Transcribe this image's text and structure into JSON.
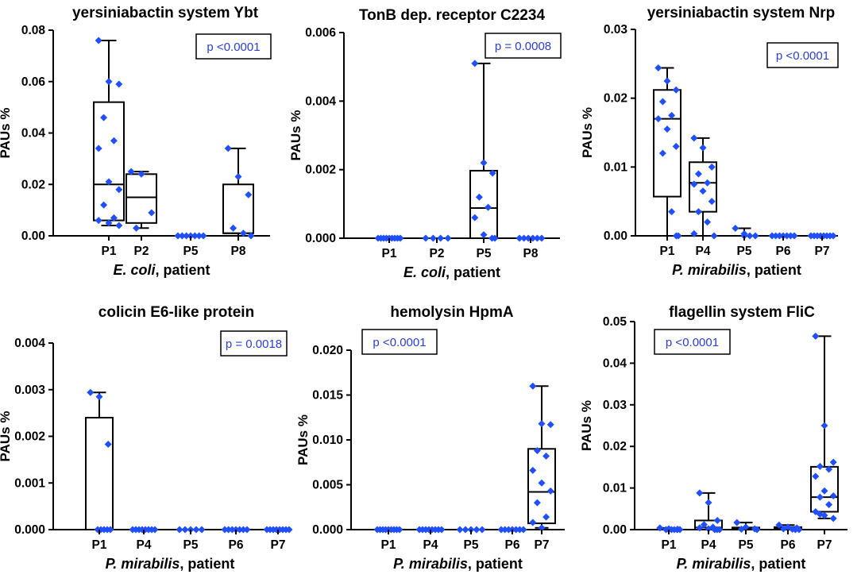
{
  "colors": {
    "point": "#1f4fff",
    "axis": "#000000",
    "pvalue_text": "#2a3fd4"
  },
  "chart_data": [
    {
      "type": "box",
      "title": "yersiniabactin system Ybt",
      "ylabel": "PAUs %",
      "xlabel_species": "E. coli",
      "xlabel_suffix": ", patient",
      "ylim": [
        0,
        0.08
      ],
      "yticks": [
        0.0,
        0.02,
        0.04,
        0.06,
        0.08
      ],
      "ytick_labels": [
        "0.00",
        "0.02",
        "0.04",
        "0.06",
        "0.08"
      ],
      "pvalue": "p <0.0001",
      "pvalue_position": "top-right",
      "categories": [
        "P1",
        "P2",
        "P5",
        "P8"
      ],
      "boxes": [
        {
          "min": 0.004,
          "q1": 0.006,
          "median": 0.02,
          "q3": 0.052,
          "max": 0.076
        },
        {
          "min": 0.003,
          "q1": 0.005,
          "median": 0.015,
          "q3": 0.024,
          "max": 0.025
        },
        {
          "min": 0.0,
          "q1": 0.0,
          "median": 0.0,
          "q3": 0.0,
          "max": 0.0
        },
        {
          "min": 0.0,
          "q1": 0.001,
          "median": 0.001,
          "q3": 0.02,
          "max": 0.034
        }
      ],
      "points": [
        [
          0.076,
          0.06,
          0.059,
          0.046,
          0.037,
          0.034,
          0.021,
          0.018,
          0.012,
          0.007,
          0.006,
          0.005,
          0.004
        ],
        [
          0.025,
          0.024,
          0.009,
          0.003
        ],
        [
          0.0,
          0.0,
          0.0,
          0.0,
          0.0,
          0.0,
          0.0
        ],
        [
          0.034,
          0.023,
          0.016,
          0.003,
          0.001,
          0.0
        ]
      ]
    },
    {
      "type": "box",
      "title": "TonB dep. receptor C2234",
      "ylabel": "PAUs %",
      "xlabel_species": "E. coli",
      "xlabel_suffix": ", patient",
      "ylim": [
        0,
        0.006
      ],
      "yticks": [
        0.0,
        0.002,
        0.004,
        0.006
      ],
      "ytick_labels": [
        "0.000",
        "0.002",
        "0.004",
        "0.006"
      ],
      "pvalue": "p = 0.0008",
      "pvalue_position": "top-right",
      "categories": [
        "P1",
        "P2",
        "P5",
        "P8"
      ],
      "boxes": [
        {
          "min": 0.0,
          "q1": 0.0,
          "median": 0.0,
          "q3": 0.0,
          "max": 0.0
        },
        {
          "min": 0.0,
          "q1": 0.0,
          "median": 0.0,
          "q3": 0.0,
          "max": 0.0
        },
        {
          "min": 0.0,
          "q1": 0.0,
          "median": 0.00088,
          "q3": 0.00197,
          "max": 0.0051
        },
        {
          "min": 0.0,
          "q1": 0.0,
          "median": 0.0,
          "q3": 0.0,
          "max": 0.0
        }
      ],
      "points": [
        [
          0.0,
          0.0,
          0.0,
          0.0,
          0.0,
          0.0,
          0.0,
          0.0,
          0.0
        ],
        [
          0.0,
          0.0,
          0.0,
          0.0
        ],
        [
          0.0051,
          0.0022,
          0.0019,
          0.0012,
          0.0009,
          0.0006,
          0.0001,
          0.0,
          0.0
        ],
        [
          0.0,
          0.0,
          0.0,
          0.0,
          0.0,
          0.0
        ]
      ]
    },
    {
      "type": "box",
      "title": "yersiniabactin system Nrp",
      "ylabel": "PAUs %",
      "xlabel_species": "P. mirabilis",
      "xlabel_suffix": ", patient",
      "ylim": [
        0,
        0.03
      ],
      "yticks": [
        0.0,
        0.01,
        0.02,
        0.03
      ],
      "ytick_labels": [
        "0.00",
        "0.01",
        "0.02",
        "0.03"
      ],
      "pvalue": "p <0.0001",
      "pvalue_position": "top-right",
      "categories": [
        "P1",
        "P4",
        "P5",
        "P6",
        "P7"
      ],
      "boxes": [
        {
          "min": 0.0,
          "q1": 0.0057,
          "median": 0.017,
          "q3": 0.0212,
          "max": 0.0244
        },
        {
          "min": 0.0,
          "q1": 0.0035,
          "median": 0.0077,
          "q3": 0.0107,
          "max": 0.0142
        },
        {
          "min": 0.0,
          "q1": 0.0,
          "median": 0.0,
          "q3": 0.0,
          "max": 0.0011
        },
        {
          "min": 0.0,
          "q1": 0.0,
          "median": 0.0,
          "q3": 0.0,
          "max": 0.0
        },
        {
          "min": 0.0,
          "q1": 0.0,
          "median": 0.0,
          "q3": 0.0,
          "max": 0.0
        }
      ],
      "points": [
        [
          0.0244,
          0.0225,
          0.0212,
          0.0195,
          0.0175,
          0.017,
          0.0155,
          0.013,
          0.012,
          0.0035,
          0.0,
          0.0
        ],
        [
          0.0142,
          0.0128,
          0.01,
          0.009,
          0.0077,
          0.0075,
          0.0065,
          0.005,
          0.0035,
          0.002,
          0.0003,
          0.0
        ],
        [
          0.0011,
          0.0003,
          0.0,
          0.0,
          0.0
        ],
        [
          0.0,
          0.0,
          0.0,
          0.0,
          0.0,
          0.0,
          0.0
        ],
        [
          0.0,
          0.0,
          0.0,
          0.0,
          0.0,
          0.0,
          0.0,
          0.0
        ]
      ]
    },
    {
      "type": "box",
      "title": "colicin E6-like protein",
      "ylabel": "PAUs %",
      "xlabel_species": "P. mirabilis",
      "xlabel_suffix": ", patient",
      "ylim": [
        0,
        0.004
      ],
      "yticks": [
        0.0,
        0.001,
        0.002,
        0.003,
        0.004
      ],
      "ytick_labels": [
        "0.000",
        "0.001",
        "0.002",
        "0.003",
        "0.004"
      ],
      "pvalue": "p = 0.0018",
      "pvalue_position": "top-right",
      "categories": [
        "P1",
        "P4",
        "P5",
        "P6",
        "P7"
      ],
      "boxes": [
        {
          "min": 0.0,
          "q1": 0.0,
          "median": 0.0,
          "q3": 0.0024,
          "max": 0.00294
        },
        {
          "min": 0.0,
          "q1": 0.0,
          "median": 0.0,
          "q3": 0.0,
          "max": 0.0
        },
        {
          "min": 0.0,
          "q1": 0.0,
          "median": 0.0,
          "q3": 0.0,
          "max": 0.0
        },
        {
          "min": 0.0,
          "q1": 0.0,
          "median": 0.0,
          "q3": 0.0,
          "max": 0.0
        },
        {
          "min": 0.0,
          "q1": 0.0,
          "median": 0.0,
          "q3": 0.0,
          "max": 0.0
        }
      ],
      "points": [
        [
          0.00294,
          0.00285,
          0.00183,
          0.0,
          0.0,
          0.0,
          0.0,
          0.0
        ],
        [
          0.0,
          0.0,
          0.0,
          0.0,
          0.0,
          0.0,
          0.0,
          0.0
        ],
        [
          0.0,
          0.0,
          0.0,
          0.0,
          0.0
        ],
        [
          0.0,
          0.0,
          0.0,
          0.0,
          0.0,
          0.0,
          0.0
        ],
        [
          0.0,
          0.0,
          0.0,
          0.0,
          0.0,
          0.0,
          0.0,
          0.0
        ]
      ]
    },
    {
      "type": "box",
      "title": "hemolysin HpmA",
      "ylabel": "PAUs %",
      "xlabel_species": "P. mirabilis",
      "xlabel_suffix": ", patient",
      "ylim": [
        0,
        0.02
      ],
      "yticks": [
        0.0,
        0.005,
        0.01,
        0.015,
        0.02
      ],
      "ytick_labels": [
        "0.000",
        "0.005",
        "0.010",
        "0.015",
        "0.020"
      ],
      "pvalue": "p <0.0001",
      "pvalue_position": "top-left",
      "categories": [
        "P1",
        "P4",
        "P5",
        "P6",
        "P7"
      ],
      "boxes": [
        {
          "min": 0.0,
          "q1": 0.0,
          "median": 0.0,
          "q3": 0.0,
          "max": 0.0
        },
        {
          "min": 0.0,
          "q1": 0.0,
          "median": 0.0,
          "q3": 0.0,
          "max": 0.0
        },
        {
          "min": 0.0,
          "q1": 0.0,
          "median": 0.0,
          "q3": 0.0,
          "max": 0.0
        },
        {
          "min": 0.0,
          "q1": 0.0,
          "median": 0.0,
          "q3": 0.0,
          "max": 0.0
        },
        {
          "min": 0.0002,
          "q1": 0.0007,
          "median": 0.0042,
          "q3": 0.009,
          "max": 0.016
        }
      ],
      "points": [
        [
          0.0,
          0.0,
          0.0,
          0.0,
          0.0,
          0.0,
          0.0,
          0.0,
          0.0
        ],
        [
          0.0,
          0.0,
          0.0,
          0.0,
          0.0,
          0.0,
          0.0,
          0.0
        ],
        [
          0.0,
          0.0,
          0.0,
          0.0,
          0.0
        ],
        [
          0.0,
          0.0,
          0.0,
          0.0,
          0.0,
          0.0,
          0.0
        ],
        [
          0.016,
          0.0118,
          0.0117,
          0.0088,
          0.0082,
          0.0066,
          0.0052,
          0.0043,
          0.003,
          0.0014,
          0.0008,
          0.0002
        ]
      ]
    },
    {
      "type": "box",
      "title": "flagellin system FliC",
      "ylabel": "PAUs %",
      "xlabel_species": "P. mirabilis",
      "xlabel_suffix": ", patient",
      "ylim": [
        0,
        0.05
      ],
      "yticks": [
        0.0,
        0.01,
        0.02,
        0.03,
        0.04,
        0.05
      ],
      "ytick_labels": [
        "0.00",
        "0.01",
        "0.02",
        "0.03",
        "0.04",
        "0.05"
      ],
      "pvalue": "p <0.0001",
      "pvalue_position": "top-left",
      "categories": [
        "P1",
        "P4",
        "P5",
        "P6",
        "P7"
      ],
      "boxes": [
        {
          "min": 0.0,
          "q1": 0.0,
          "median": 0.0,
          "q3": 0.0,
          "max": 0.0004
        },
        {
          "min": 0.0,
          "q1": 0.0,
          "median": 0.0005,
          "q3": 0.0022,
          "max": 0.0088
        },
        {
          "min": 0.0,
          "q1": 0.0,
          "median": 0.0002,
          "q3": 0.0005,
          "max": 0.0017
        },
        {
          "min": 0.0,
          "q1": 0.0,
          "median": 0.0003,
          "q3": 0.0006,
          "max": 0.0011
        },
        {
          "min": 0.0027,
          "q1": 0.0043,
          "median": 0.0078,
          "q3": 0.0151,
          "max": 0.0465
        }
      ],
      "points": [
        [
          0.0004,
          0.0002,
          0.0001,
          0.0,
          0.0,
          0.0,
          0.0,
          0.0,
          0.0
        ],
        [
          0.0088,
          0.0065,
          0.0022,
          0.0012,
          0.0006,
          0.0004,
          0.0002,
          0.0,
          0.0,
          0.0
        ],
        [
          0.0017,
          0.0006,
          0.0002,
          0.0001,
          0.0
        ],
        [
          0.0011,
          0.0006,
          0.0004,
          0.0002,
          0.0001,
          0.0,
          0.0
        ],
        [
          0.0465,
          0.025,
          0.0162,
          0.0152,
          0.0145,
          0.0128,
          0.0093,
          0.0081,
          0.0078,
          0.006,
          0.0043,
          0.0034,
          0.0027,
          0.0037
        ]
      ]
    }
  ]
}
